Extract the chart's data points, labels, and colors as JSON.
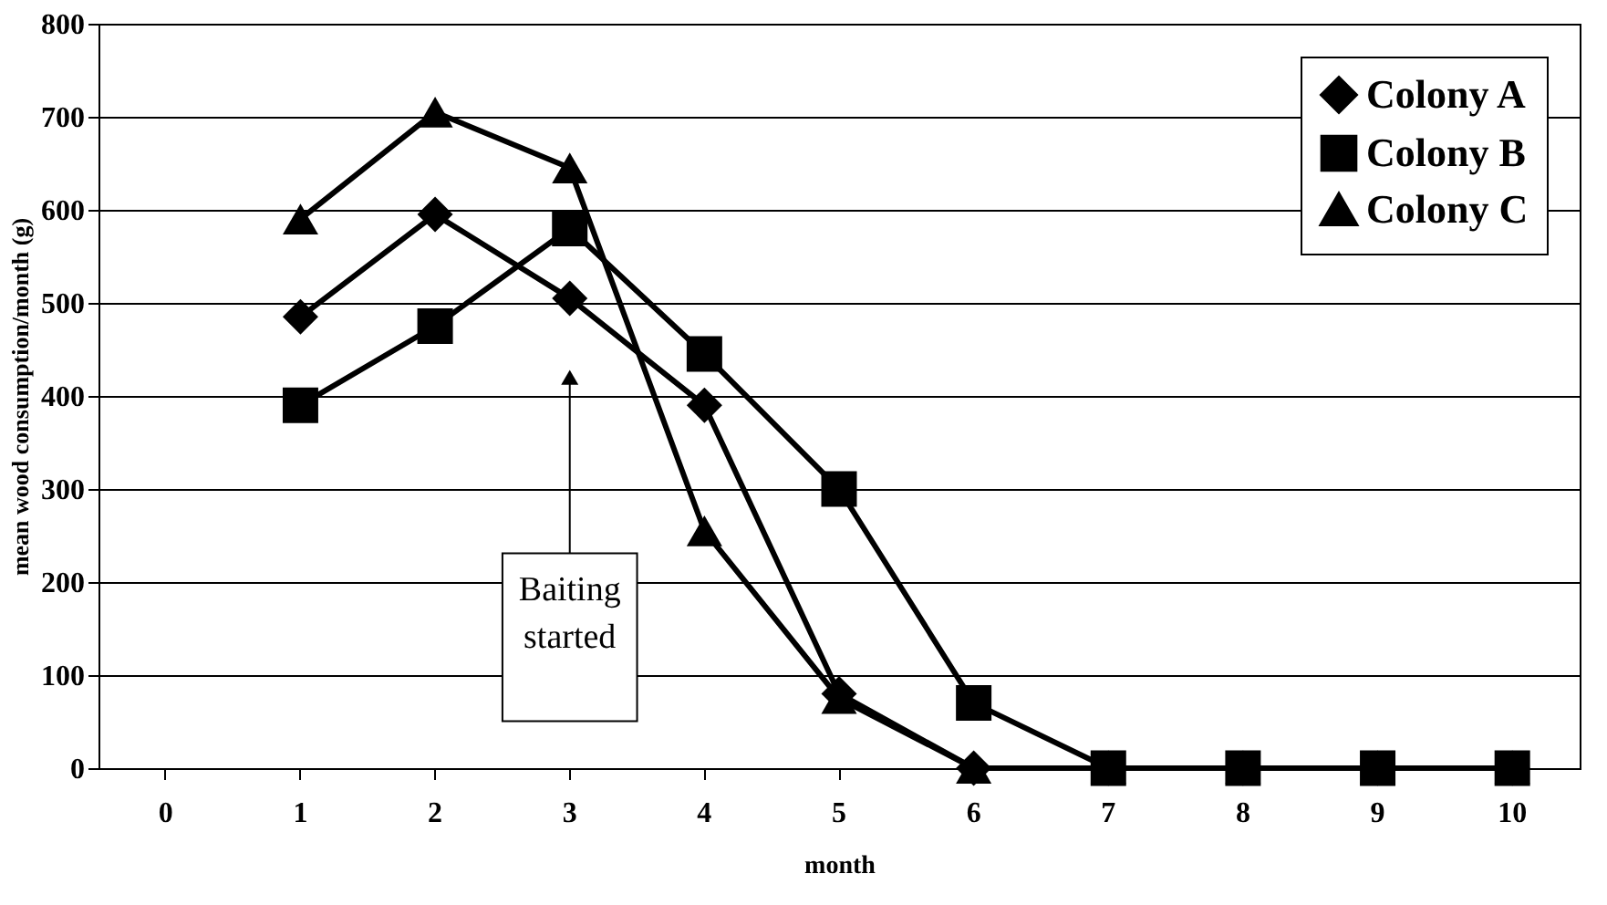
{
  "chart_data": {
    "type": "line",
    "xlabel": "month",
    "ylabel": "mean wood consumption/month (g)",
    "categories": [
      "0",
      "1",
      "2",
      "3",
      "4",
      "5",
      "6",
      "7",
      "8",
      "9",
      "10"
    ],
    "series": [
      {
        "name": "Colony A",
        "color": "#000000",
        "marker": "diamond",
        "values": [
          null,
          485,
          595,
          505,
          390,
          80,
          0,
          0,
          0,
          0,
          0
        ]
      },
      {
        "name": "Colony B",
        "color": "#000000",
        "marker": "square",
        "values": [
          null,
          390,
          475,
          580,
          445,
          300,
          70,
          0,
          0,
          0,
          0
        ]
      },
      {
        "name": "Colony C",
        "color": "#000000",
        "marker": "triangle",
        "values": [
          null,
          590,
          705,
          645,
          255,
          75,
          0,
          0,
          0,
          0,
          0
        ]
      }
    ],
    "ylim": [
      0,
      800
    ],
    "yticks": [
      0,
      100,
      200,
      300,
      400,
      500,
      600,
      700,
      800
    ],
    "grid": "y",
    "legend": "top right",
    "line_style": "solid",
    "annotations": [
      {
        "text": "Baiting started",
        "x": "3",
        "y": 420
      }
    ]
  }
}
